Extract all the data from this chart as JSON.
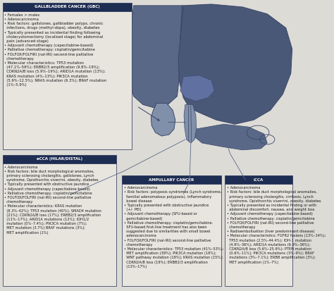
{
  "background_color": "#dddbd6",
  "header_bg": "#1e2d52",
  "header_text_color": "#ffffff",
  "box_bg": "#e8e5df",
  "text_color": "#1a1a1a",
  "gbc_title": "GALLBLADDER CANCER (GBC)",
  "gbc_text": "• Females > males\n• Adenocarcinoma\n• Risk factors: gallstones, gallbladder polyps, chronic\n  infections, drugs (methyl-dopa), obesity, diabetes\n• Typically presented as incidental finding following\n  cholecystomectomy (localised stage) for abdominal\n  pain (advanced stage)\n• Adjuvant chemotherapy (capecitabine-based)\n• Palliative chemotherapy: cisplatin/gemcitabine\n• FOLFOX/FOLFIRI (nal-IRI) second-line palliative\n  chemotherapy\n• Molecular characteristics: TP53 mutation\n  (47.1%–59%); ERBB2/3 amplification (9.8%–19%);\n  CDKN2A/B loss (5.9%–19%); ARID1A mutation (13%);\n  KRAS mutation (4%–13%); PIK3CA mutation\n  (5.9%–12.5%); NRAS mutation (6.3%); BRAF mutation\n  (1%–5.9%)",
  "ecca_title": "eCCA (HILAR/DISTAL)",
  "ecca_text": "• Adenocarcinoma\n• Risk factors: bile duct morphological anomalies,\n  primary sclerosing cholangitis, gallstones, Lynch\n  syndrome, Opisthorchis viverrini, obesity, diabetes\n• Typically presented with obstructive jaundice\n• Adjuvant chemotherapy (capecitabine-based)\n• Palliative chemotherapy: cisplatin/gemcitabine\n• FOLFOX/FOLFIRI (nal-IRI) second-line palliative\n  chemotherapy\n• Molecular characteristics: KRAS mutation\n  (8.3%–42%); TP53 mutation (40%); SMAD4 mutation\n  (21%); CDKN2A/B loss (17%); ERBB2/3 amplification\n  (11%–17%); ARID1A mutations (12%); IDH1/2\n  mutation (0%–7.4%); PIK3CA mutation (7%);\n  MET mutation (3.7%) BRAF mutations (3%);\n  MET amplification (1%)",
  "ampullary_title": "AMPULLARY CANCER",
  "ampullary_text": "• Adenocarcinoma\n• Risk factors: polyposis syndromes (Lynch syndrome,\n  familial adenomatous polyposis), inflammatory\n  bowel disease\n• Typically presented with obstructive jaundice\n  (+/- PEI)\n• Adjuvant chemotherapy (SFU-based or\n  gemcitabine-based)\n• Palliative chemotherapy: cisplatin/gemcitabine.\n  SFU-based first-line treatment has also been\n  suggested due to similarities with small bowel\n  adenocarcinoma\n• FOLFOX/FOLFIRI (nal-IRI) second-line palliative\n  chemotherapy\n• Molecular characteristics: TP53 mutation (41%–53%);\n  MET amplification (39%); PIK3CA mutation (18%);\n  WNT pathway mutation (18%); KRAS mutation (15%);\n  CDKN2A/B loss (19%); ERBB2/3 amplification\n  (13%–17%)",
  "icca_title": "iCCA",
  "icca_text": "• Adenocarcinoma\n• Risk factors: bile duct morphological anomalies,\n  primary sclerosing cholangitis, cirrhosis, Lynch\n  syndrome, Opisthorchis viverrini, obesity, diabetes\n• Typically presented as incidental finding or with\n  abdominal discomfort, nausea, and weight loss\n• Adjuvant chemotherapy (capecitabine-based)\n• Palliative chemotherapy: cisplatin/gemcitabine\n• FOLFOX/FOLFIRI (nal-IRI) second-line palliative\n  chemotherapy\n• Radioembolisation (liver predominant disease)\n• Molecular characteristics: FGFR2 fusions (13%–14%);\n  TP53 mutation (2.5%–44.4%); IDH-1 mutation\n  (4.9%–36%); ARID1A mutations (6.9%–36%);\n  CDKN2A/B loss (5.6%–25.9%); PTEN mutation\n  (0.6%–11%); PIK3CA mutations (3%–9%); BRAF\n  mutations (3%–7.1%); ERBB amplification (3%);\n  MET amplification (1%–7%)",
  "liver_dark": "#4a5878",
  "liver_mid": "#5a6888",
  "liver_light": "#8090aa",
  "liver_edge": "#3a4868",
  "gb_color": "#8a9ab8",
  "line_color": "#8090aa"
}
